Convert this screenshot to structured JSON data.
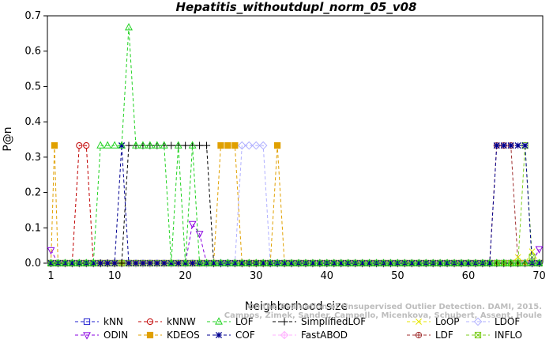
{
  "chart_data": {
    "type": "line",
    "title": "Hepatitis_withoutdupl_norm_05_v08",
    "xlabel": "Neighborhood size",
    "ylabel": "P@n",
    "xlim": [
      1,
      70
    ],
    "ylim": [
      0,
      0.7
    ],
    "x_ticks": [
      1,
      10,
      20,
      30,
      40,
      50,
      60,
      70
    ],
    "y_ticks": [
      0.0,
      0.1,
      0.2,
      0.3,
      0.4,
      0.5,
      0.6,
      0.7
    ],
    "x_tick_labels": [
      "1",
      "10",
      "20",
      "30",
      "40",
      "50",
      "60",
      "70"
    ],
    "y_tick_labels": [
      "0.0",
      "0.1",
      "0.2",
      "0.3",
      "0.4",
      "0.5",
      "0.6",
      "0.7"
    ],
    "grid": false,
    "legend_position": "bottom",
    "credit": "Campos, Zimek, Sander, Campello, Micenkova, Schubert, Assent, Houle. On the Evaluation of Unsupervised Outlier Detection. DAMI, 2015.",
    "credit_line1": "On the Evaluation of Unsupervised Outlier Detection. DAMI, 2015.",
    "credit_line2": "Campos, Zimek, Sander, Campello, Micenkova, Schubert, Assent, Houle",
    "series": [
      {
        "name": "kNN",
        "color": "#1f1fcf",
        "marker": "square",
        "points": [
          [
            1,
            0
          ],
          [
            70,
            0
          ]
        ]
      },
      {
        "name": "kNNW",
        "color": "#c00000",
        "marker": "circle",
        "points": [
          [
            1,
            0
          ],
          [
            4,
            0
          ],
          [
            5,
            0.333
          ],
          [
            6,
            0.333
          ],
          [
            7,
            0
          ],
          [
            70,
            0
          ]
        ]
      },
      {
        "name": "LOF",
        "color": "#1fd21f",
        "marker": "triangle-up",
        "points": [
          [
            1,
            0
          ],
          [
            7,
            0
          ],
          [
            8,
            0.333
          ],
          [
            9,
            0.333
          ],
          [
            10,
            0.333
          ],
          [
            11,
            0.333
          ],
          [
            12,
            0.667
          ],
          [
            13,
            0.333
          ],
          [
            14,
            0.333
          ],
          [
            15,
            0.333
          ],
          [
            16,
            0.333
          ],
          [
            17,
            0.333
          ],
          [
            18,
            0
          ],
          [
            19,
            0.333
          ],
          [
            20,
            0
          ],
          [
            21,
            0.333
          ],
          [
            22,
            0
          ],
          [
            70,
            0
          ]
        ]
      },
      {
        "name": "SimplifiedLOF",
        "color": "#000000",
        "marker": "plus",
        "points": [
          [
            1,
            0
          ],
          [
            11,
            0
          ],
          [
            12,
            0.333
          ],
          [
            13,
            0.333
          ],
          [
            14,
            0.333
          ],
          [
            15,
            0.333
          ],
          [
            16,
            0.333
          ],
          [
            17,
            0.333
          ],
          [
            18,
            0.333
          ],
          [
            19,
            0.333
          ],
          [
            20,
            0.333
          ],
          [
            21,
            0.333
          ],
          [
            22,
            0.333
          ],
          [
            23,
            0.333
          ],
          [
            24,
            0
          ],
          [
            70,
            0
          ]
        ]
      },
      {
        "name": "LoOP",
        "color": "#e6e600",
        "marker": "x",
        "points": [
          [
            1,
            0
          ],
          [
            66,
            0
          ],
          [
            67,
            0.017
          ],
          [
            68,
            0
          ],
          [
            69,
            0.033
          ],
          [
            70,
            0
          ]
        ]
      },
      {
        "name": "LDOF",
        "color": "#b0b0ff",
        "marker": "diamond",
        "points": [
          [
            1,
            0
          ],
          [
            27,
            0
          ],
          [
            28,
            0.333
          ],
          [
            29,
            0.333
          ],
          [
            30,
            0.333
          ],
          [
            31,
            0.333
          ],
          [
            32,
            0
          ],
          [
            70,
            0
          ]
        ]
      },
      {
        "name": "ODIN",
        "color": "#8a00e0",
        "marker": "triangle-down",
        "points": [
          [
            1,
            0.037
          ],
          [
            2,
            0
          ],
          [
            20,
            0
          ],
          [
            21,
            0.111
          ],
          [
            22,
            0.083
          ],
          [
            23,
            0
          ],
          [
            69,
            0
          ],
          [
            70,
            0.04
          ]
        ]
      },
      {
        "name": "KDEOS",
        "color": "#e0a000",
        "marker": "square-filled",
        "points": [
          [
            1,
            0
          ],
          [
            1.5,
            0.333
          ],
          [
            2,
            0
          ],
          [
            24,
            0
          ],
          [
            25,
            0.333
          ],
          [
            26,
            0.333
          ],
          [
            27,
            0.333
          ],
          [
            28,
            0
          ],
          [
            32,
            0
          ],
          [
            33,
            0.333
          ],
          [
            34,
            0
          ],
          [
            70,
            0
          ]
        ]
      },
      {
        "name": "COF",
        "color": "#000090",
        "marker": "asterisk",
        "points": [
          [
            1,
            0
          ],
          [
            10,
            0
          ],
          [
            11,
            0.333
          ],
          [
            12,
            0
          ],
          [
            63,
            0
          ],
          [
            64,
            0.333
          ],
          [
            65,
            0.333
          ],
          [
            66,
            0.333
          ],
          [
            67,
            0.333
          ],
          [
            68,
            0.333
          ],
          [
            69,
            0
          ],
          [
            70,
            0
          ]
        ]
      },
      {
        "name": "FastABOD",
        "color": "#ffb0ff",
        "marker": "diamond-plus",
        "points": [
          [
            1,
            0
          ],
          [
            70,
            0
          ]
        ]
      },
      {
        "name": "LDF",
        "color": "#a03030",
        "marker": "circle-plus",
        "points": [
          [
            1,
            0
          ],
          [
            63,
            0
          ],
          [
            64,
            0.333
          ],
          [
            65,
            0.333
          ],
          [
            66,
            0.333
          ],
          [
            67,
            0
          ],
          [
            70,
            0
          ]
        ]
      },
      {
        "name": "INFLO",
        "color": "#7ccd1f",
        "marker": "square-x",
        "points": [
          [
            1,
            0
          ],
          [
            67,
            0
          ],
          [
            68,
            0.333
          ],
          [
            69,
            0.017
          ],
          [
            70,
            0
          ]
        ]
      }
    ]
  }
}
